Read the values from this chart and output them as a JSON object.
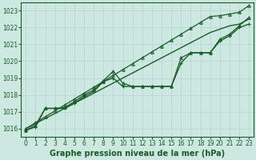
{
  "background_color": "#cce8e0",
  "grid_color": "#b0d8cc",
  "line_color": "#1a5c2a",
  "xlabel": "Graphe pression niveau de la mer (hPa)",
  "xlabel_fontsize": 7,
  "ylim": [
    1015.5,
    1023.5
  ],
  "xlim": [
    -0.5,
    23.5
  ],
  "yticks": [
    1016,
    1017,
    1018,
    1019,
    1020,
    1021,
    1022,
    1023
  ],
  "xticks": [
    0,
    1,
    2,
    3,
    4,
    5,
    6,
    7,
    8,
    9,
    10,
    11,
    12,
    13,
    14,
    15,
    16,
    17,
    18,
    19,
    20,
    21,
    22,
    23
  ],
  "series": [
    {
      "x": [
        0,
        1,
        2,
        3,
        4,
        5,
        6,
        7,
        8,
        9,
        10,
        11,
        12,
        13,
        14,
        15,
        16,
        17,
        18,
        19,
        20,
        21,
        22,
        23
      ],
      "y": [
        1016.0,
        1016.35,
        1016.7,
        1017.05,
        1017.4,
        1017.75,
        1018.1,
        1018.45,
        1018.8,
        1019.15,
        1019.5,
        1019.85,
        1020.2,
        1020.55,
        1020.9,
        1021.25,
        1021.6,
        1021.95,
        1022.3,
        1022.65,
        1022.7,
        1022.8,
        1022.9,
        1023.3
      ],
      "marker": "^",
      "markersize": 2.5,
      "linewidth": 0.9
    },
    {
      "x": [
        0,
        1,
        2,
        3,
        4,
        5,
        6,
        7,
        8,
        9,
        10,
        11,
        12,
        13,
        14,
        15,
        16,
        17,
        18,
        19,
        20,
        21,
        22,
        23
      ],
      "y": [
        1016.0,
        1016.3,
        1016.6,
        1016.9,
        1017.2,
        1017.5,
        1017.8,
        1018.1,
        1018.4,
        1018.7,
        1019.0,
        1019.3,
        1019.6,
        1019.9,
        1020.2,
        1020.5,
        1020.8,
        1021.1,
        1021.4,
        1021.7,
        1021.9,
        1022.1,
        1022.2,
        1022.5
      ],
      "marker": null,
      "markersize": 0,
      "linewidth": 1.0
    },
    {
      "x": [
        0,
        1,
        2,
        3,
        4,
        5,
        6,
        7,
        8,
        9,
        10,
        11,
        12,
        13,
        14,
        15,
        16,
        17,
        18,
        19,
        20,
        21,
        22,
        23
      ],
      "y": [
        1015.9,
        1016.1,
        1017.2,
        1017.2,
        1017.2,
        1017.5,
        1017.9,
        1018.2,
        1018.8,
        1019.0,
        1018.5,
        1018.5,
        1018.5,
        1018.5,
        1018.5,
        1018.5,
        1019.9,
        1020.5,
        1020.5,
        1020.5,
        1021.2,
        1021.5,
        1022.0,
        1022.2
      ],
      "marker": "+",
      "markersize": 3.5,
      "linewidth": 1.0
    },
    {
      "x": [
        0,
        1,
        2,
        3,
        4,
        5,
        6,
        7,
        8,
        9,
        10,
        11,
        12,
        13,
        14,
        15,
        16,
        17,
        18,
        19,
        20,
        21,
        22,
        23
      ],
      "y": [
        1015.9,
        1016.2,
        1017.2,
        1017.2,
        1017.25,
        1017.6,
        1018.0,
        1018.3,
        1018.85,
        1019.4,
        1018.7,
        1018.5,
        1018.5,
        1018.5,
        1018.5,
        1018.5,
        1020.2,
        1020.5,
        1020.5,
        1020.5,
        1021.3,
        1021.6,
        1022.1,
        1022.6
      ],
      "marker": "^",
      "markersize": 2.5,
      "linewidth": 0.9
    }
  ]
}
